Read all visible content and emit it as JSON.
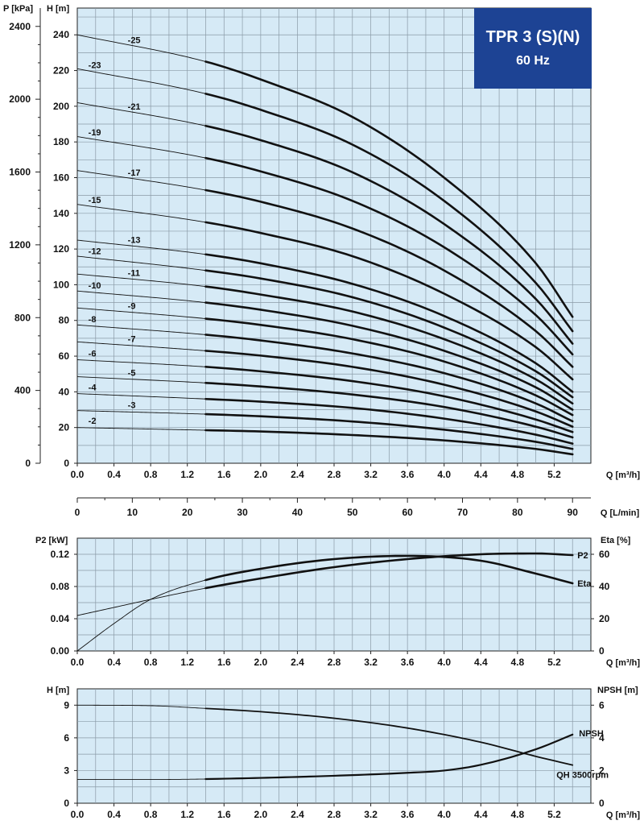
{
  "colors": {
    "plot_bg": "#d6eaf6",
    "grid": "#8a9aa6",
    "curve": "#111111",
    "title_bg": "#1d4394",
    "title_fg": "#ffffff"
  },
  "title_box": {
    "line1": "TPR 3 (S)(N)",
    "line2": "60 Hz"
  },
  "chart_data": [
    {
      "id": "qh",
      "type": "line",
      "xlabel": "Q [m³/h]",
      "ylabel": "H [m]",
      "y2label": "P [kPa]",
      "xlim": [
        0,
        5.6
      ],
      "ylim": [
        0,
        255
      ],
      "xticks": [
        "0.0",
        "0.4",
        "0.8",
        "1.2",
        "1.6",
        "2.0",
        "2.4",
        "2.8",
        "3.2",
        "3.6",
        "4.0",
        "4.4",
        "4.8",
        "5.2"
      ],
      "yticks": [
        "0",
        "20",
        "40",
        "60",
        "80",
        "100",
        "120",
        "140",
        "160",
        "180",
        "200",
        "220",
        "240"
      ],
      "y2ticks": [
        "0",
        "400",
        "800",
        "1200",
        "1600",
        "2000",
        "2400"
      ],
      "secondary_x": {
        "xlabel": "Q [L/min]",
        "ticks": [
          "0",
          "10",
          "20",
          "30",
          "40",
          "50",
          "60",
          "70",
          "80",
          "90"
        ]
      },
      "operating_range": [
        1.4,
        5.4
      ],
      "series": [
        {
          "name": "-2",
          "x": [
            0,
            1.4,
            2.0,
            3.0,
            4.0,
            5.0,
            5.4
          ],
          "y": [
            20,
            18.5,
            17.8,
            15.8,
            12.8,
            8.0,
            5.0
          ]
        },
        {
          "name": "-3",
          "x": [
            0,
            1.4,
            2.0,
            3.0,
            4.0,
            5.0,
            5.4
          ],
          "y": [
            29.5,
            27.5,
            26.3,
            23.4,
            18.8,
            12.0,
            8.0
          ]
        },
        {
          "name": "-4",
          "x": [
            0,
            1.4,
            2.0,
            3.0,
            4.0,
            5.0,
            5.4
          ],
          "y": [
            39,
            36,
            34.5,
            31.0,
            25.0,
            16.0,
            11.0
          ]
        },
        {
          "name": "-5",
          "x": [
            0,
            1.4,
            2.0,
            3.0,
            4.0,
            5.0,
            5.4
          ],
          "y": [
            48.5,
            45,
            43.0,
            38.5,
            31.5,
            20.5,
            14.5
          ]
        },
        {
          "name": "-6",
          "x": [
            0,
            1.4,
            2.0,
            3.0,
            4.0,
            5.0,
            5.4
          ],
          "y": [
            58,
            54,
            51.5,
            46.0,
            37.5,
            24.5,
            17.5
          ]
        },
        {
          "name": "-7",
          "x": [
            0,
            1.4,
            2.0,
            3.0,
            4.0,
            5.0,
            5.4
          ],
          "y": [
            68,
            63,
            60.3,
            54.0,
            44.0,
            29.0,
            20.5
          ]
        },
        {
          "name": "-8",
          "x": [
            0,
            1.4,
            2.0,
            3.0,
            4.0,
            5.0,
            5.4
          ],
          "y": [
            77.5,
            72,
            68.8,
            61.5,
            50.5,
            33.5,
            23.5
          ]
        },
        {
          "name": "-9",
          "x": [
            0,
            1.4,
            2.0,
            3.0,
            4.0,
            5.0,
            5.4
          ],
          "y": [
            87,
            81,
            77.5,
            69.5,
            57.0,
            38.0,
            27.0
          ]
        },
        {
          "name": "-10",
          "x": [
            0,
            1.4,
            2.0,
            3.0,
            4.0,
            5.0,
            5.4
          ],
          "y": [
            96.5,
            90,
            86.0,
            77.0,
            63.0,
            42.5,
            30.0
          ]
        },
        {
          "name": "-11",
          "x": [
            0,
            1.4,
            2.0,
            3.0,
            4.0,
            5.0,
            5.4
          ],
          "y": [
            106,
            99,
            94.5,
            85.0,
            69.5,
            47.0,
            33.5
          ]
        },
        {
          "name": "-12",
          "x": [
            0,
            1.4,
            2.0,
            3.0,
            4.0,
            5.0,
            5.4
          ],
          "y": [
            116,
            108,
            103.5,
            93.0,
            76.0,
            51.5,
            37.0
          ]
        },
        {
          "name": "-13",
          "x": [
            0,
            1.4,
            2.0,
            3.0,
            4.0,
            5.0,
            5.4
          ],
          "y": [
            125,
            117,
            112.0,
            100.5,
            82.5,
            56.0,
            40.0
          ]
        },
        {
          "name": "-15",
          "x": [
            0,
            1.4,
            2.0,
            3.0,
            4.0,
            5.0,
            5.4
          ],
          "y": [
            145,
            135,
            129.0,
            116.0,
            95.0,
            65.0,
            47.0
          ]
        },
        {
          "name": "-17",
          "x": [
            0,
            1.4,
            2.0,
            3.0,
            4.0,
            5.0,
            5.4
          ],
          "y": [
            164,
            153,
            146.5,
            131.5,
            108.0,
            74.0,
            54.0
          ]
        },
        {
          "name": "-19",
          "x": [
            0,
            1.4,
            2.0,
            3.0,
            4.0,
            5.0,
            5.4
          ],
          "y": [
            183,
            171,
            163.5,
            147.0,
            121.0,
            83.0,
            61.0
          ]
        },
        {
          "name": "-21",
          "x": [
            0,
            1.4,
            2.0,
            3.0,
            4.0,
            5.0,
            5.4
          ],
          "y": [
            202,
            189,
            181.0,
            163.0,
            134.0,
            92.0,
            67.0
          ]
        },
        {
          "name": "-23",
          "x": [
            0,
            1.4,
            2.0,
            3.0,
            4.0,
            5.0,
            5.4
          ],
          "y": [
            221,
            207,
            198.0,
            178.5,
            147.0,
            101.0,
            74.0
          ]
        },
        {
          "name": "-25",
          "x": [
            0,
            1.4,
            2.0,
            3.0,
            4.0,
            5.0,
            5.4
          ],
          "y": [
            240,
            225,
            215.0,
            194.0,
            160.0,
            112.0,
            82.0
          ]
        }
      ]
    },
    {
      "id": "power",
      "type": "line",
      "xlabel": "Q [m³/h]",
      "ylabel": "P2 [kW]",
      "y2label": "Eta [%]",
      "xlim": [
        0,
        5.6
      ],
      "ylim": [
        0,
        0.14
      ],
      "y2lim": [
        0,
        70
      ],
      "xticks": [
        "0.0",
        "0.4",
        "0.8",
        "1.2",
        "1.6",
        "2.0",
        "2.4",
        "2.8",
        "3.2",
        "3.6",
        "4.0",
        "4.4",
        "4.8",
        "5.2"
      ],
      "yticks": [
        "0.00",
        "0.04",
        "0.08",
        "0.12"
      ],
      "y2ticks": [
        "0",
        "20",
        "40",
        "60"
      ],
      "operating_range": [
        1.4,
        5.4
      ],
      "series": [
        {
          "name": "P2",
          "axis": "left",
          "x": [
            0,
            0.4,
            0.8,
            1.4,
            2.0,
            2.8,
            3.6,
            4.4,
            5.0,
            5.4
          ],
          "y": [
            0.044,
            0.054,
            0.064,
            0.078,
            0.09,
            0.104,
            0.114,
            0.12,
            0.121,
            0.119
          ]
        },
        {
          "name": "Eta",
          "axis": "right",
          "x": [
            0,
            0.4,
            0.8,
            1.4,
            2.0,
            2.8,
            3.6,
            4.4,
            5.0,
            5.4
          ],
          "y": [
            0,
            17,
            32,
            44,
            51,
            57,
            59,
            56,
            48,
            42
          ]
        }
      ]
    },
    {
      "id": "npsh",
      "type": "line",
      "xlabel": "Q [m³/h]",
      "ylabel": "H [m]",
      "y2label": "NPSH [m]",
      "xlim": [
        0,
        5.6
      ],
      "ylim": [
        0,
        10.5
      ],
      "y2lim": [
        0,
        7
      ],
      "xticks": [
        "0.0",
        "0.4",
        "0.8",
        "1.2",
        "1.6",
        "2.0",
        "2.4",
        "2.8",
        "3.2",
        "3.6",
        "4.0",
        "4.4",
        "4.8",
        "5.2"
      ],
      "yticks": [
        "0",
        "3",
        "6",
        "9"
      ],
      "y2ticks": [
        "0",
        "2",
        "4",
        "6"
      ],
      "operating_range": [
        1.4,
        5.4
      ],
      "series": [
        {
          "name": "QH 3500rpm",
          "axis": "left",
          "x": [
            0,
            0.8,
            1.4,
            2.0,
            2.8,
            3.6,
            4.4,
            5.0,
            5.4
          ],
          "y": [
            9.0,
            8.95,
            8.7,
            8.4,
            7.8,
            6.9,
            5.6,
            4.3,
            3.5
          ]
        },
        {
          "name": "NPSH",
          "axis": "right",
          "x": [
            0,
            0.8,
            1.4,
            2.0,
            2.8,
            3.6,
            4.0,
            4.4,
            5.0,
            5.4
          ],
          "y": [
            1.45,
            1.45,
            1.48,
            1.55,
            1.68,
            1.86,
            2.0,
            2.35,
            3.3,
            4.2
          ]
        }
      ]
    }
  ]
}
